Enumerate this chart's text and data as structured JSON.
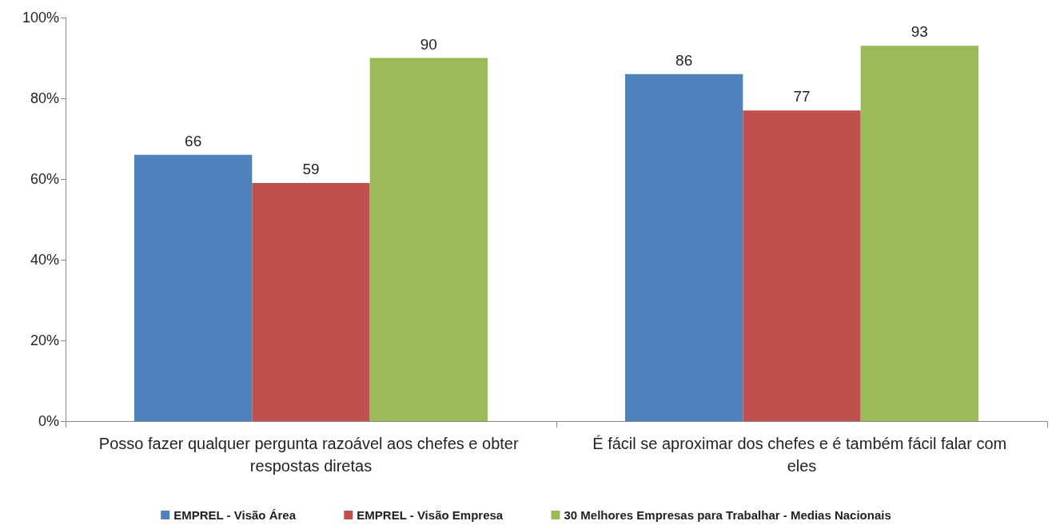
{
  "chart_data": {
    "type": "bar",
    "categories": [
      "Posso fazer qualquer pergunta razoável aos chefes e obter respostas diretas",
      "É fácil se aproximar dos chefes e é também fácil falar com eles"
    ],
    "series": [
      {
        "name": "EMPREL - Visão Área",
        "color": "#4f81bd",
        "values": [
          66,
          86
        ]
      },
      {
        "name": "EMPREL - Visão Empresa",
        "color": "#c0504d",
        "values": [
          59,
          77
        ]
      },
      {
        "name": "30 Melhores Empresas para Trabalhar - Medias Nacionais",
        "color": "#9bbb59",
        "values": [
          90,
          93
        ]
      }
    ],
    "ylim": [
      0,
      100
    ],
    "yticks": [
      {
        "value": 0,
        "label": "0%"
      },
      {
        "value": 20,
        "label": "20%"
      },
      {
        "value": 40,
        "label": "40%"
      },
      {
        "value": 60,
        "label": "60%"
      },
      {
        "value": 80,
        "label": "80%"
      },
      {
        "value": 100,
        "label": "100%"
      }
    ],
    "data_labels": true,
    "grid": false,
    "legend": "bottom"
  }
}
